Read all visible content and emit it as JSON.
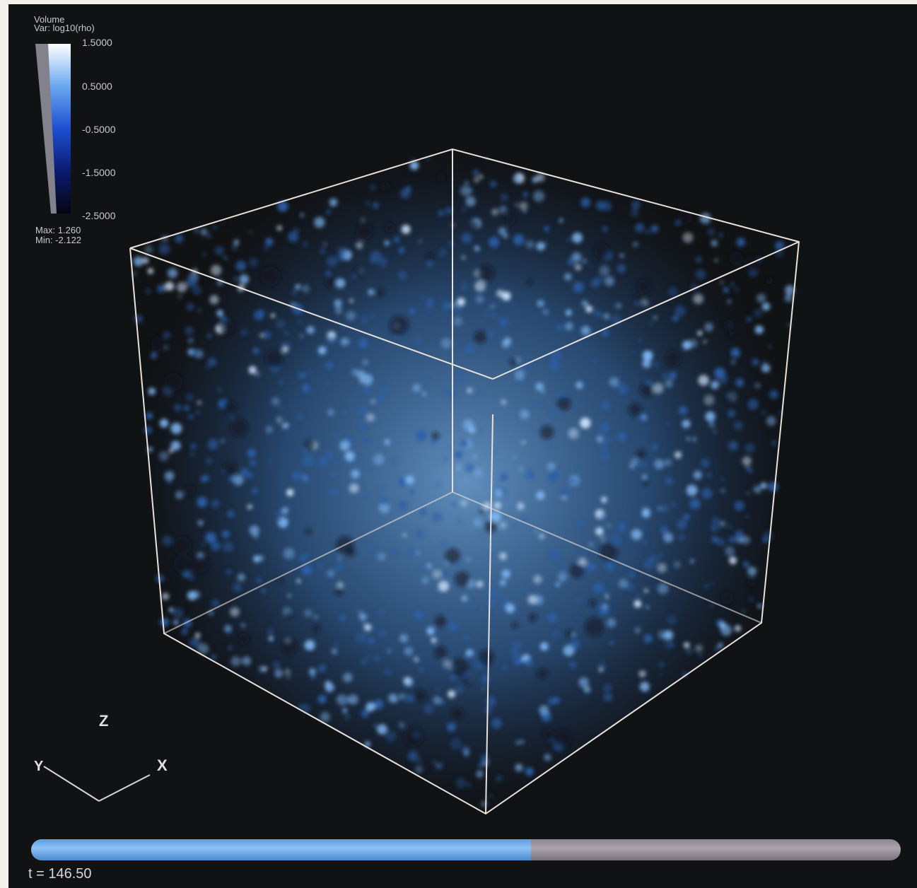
{
  "legend": {
    "title_line1": "Volume",
    "title_line2": "Var: log10(rho)",
    "ticks": [
      "1.5000",
      "0.5000",
      "-0.5000",
      "-1.5000",
      "-2.5000"
    ],
    "max_text": "Max:  1.260",
    "min_text": "Min: -2.122",
    "colors": [
      "#ffffff",
      "#6aa8f0",
      "#1e4fd0",
      "#0a1a70",
      "#050510"
    ]
  },
  "axes": {
    "z_label": "Z",
    "y_label": "Y",
    "x_label": "X"
  },
  "time": {
    "label": "t = 146.50",
    "progress": 0.575
  },
  "colors": {
    "background": "#111214",
    "cube_edge": "#e8e2dc",
    "volume_glow": "#5e9fe6"
  }
}
